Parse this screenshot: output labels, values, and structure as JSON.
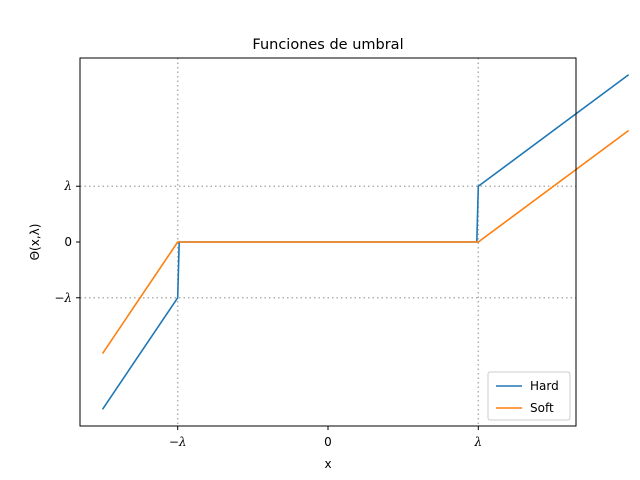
{
  "chart_data": {
    "type": "line",
    "title": "Funciones de umbral",
    "xlabel": "x",
    "ylabel": "Θ(x,λ)",
    "lambda": 1,
    "xlim": [
      -1.65,
      1.65
    ],
    "ylim": [
      -3.3,
      3.3
    ],
    "x_ticks": [
      {
        "value": -1,
        "label": "−λ"
      },
      {
        "value": 0,
        "label": "0"
      },
      {
        "value": 1,
        "label": "λ"
      }
    ],
    "y_ticks": [
      {
        "value": -1,
        "label": "−λ"
      },
      {
        "value": 0,
        "label": "0"
      },
      {
        "value": 1,
        "label": "λ"
      }
    ],
    "reference_lines": {
      "x": [
        -1,
        1
      ],
      "y": [
        -1,
        1
      ],
      "style": "dotted"
    },
    "legend_position": "lower-right",
    "series": [
      {
        "name": "Hard",
        "color": "#1f77b4",
        "points": [
          [
            -1.5,
            -3.0
          ],
          [
            -1.0,
            -1.0
          ],
          [
            -0.99,
            0.0
          ],
          [
            0.99,
            0.0
          ],
          [
            1.0,
            1.0
          ],
          [
            2.0,
            3.0
          ]
        ]
      },
      {
        "name": "Soft",
        "color": "#ff7f0e",
        "points": [
          [
            -1.5,
            -2.0
          ],
          [
            -1.0,
            0.0
          ],
          [
            1.0,
            0.0
          ],
          [
            2.0,
            2.0
          ]
        ]
      }
    ]
  }
}
